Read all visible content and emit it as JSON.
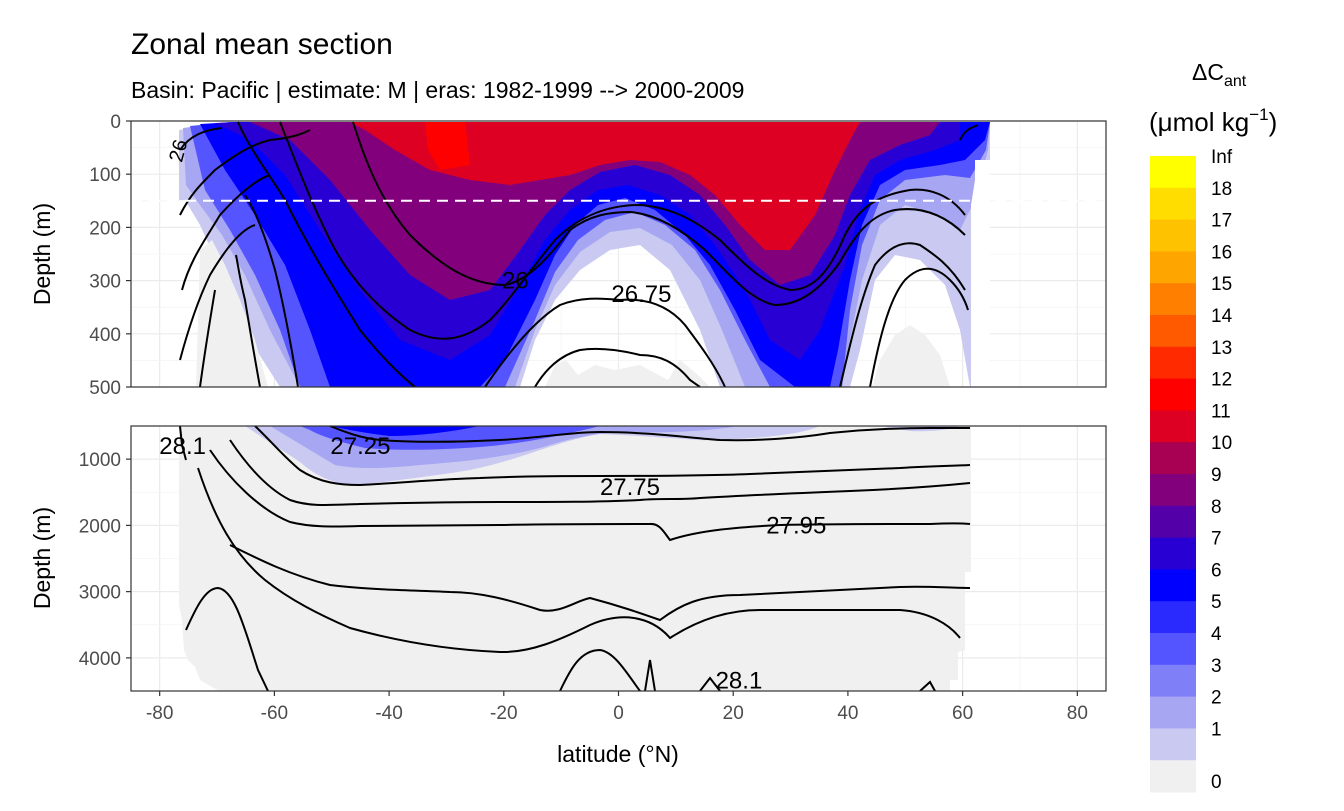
{
  "chart_data": {
    "type": "heatmap",
    "title": "Zonal mean section",
    "subtitle": "Basin: Pacific | estimate: M  | eras: 1982-1999 --> 2000-2009",
    "xlabel": "latitude (°N)",
    "ylabel_top": "Depth (m)",
    "ylabel_bottom": "Depth (m)",
    "x_ticks": [
      "-80",
      "-60",
      "-40",
      "-20",
      "0",
      "20",
      "40",
      "60",
      "80"
    ],
    "x_tick_values": [
      -80,
      -60,
      -40,
      -20,
      0,
      20,
      40,
      60,
      80
    ],
    "xlim": [
      -85,
      85
    ],
    "top_panel": {
      "ylim": [
        0,
        500
      ],
      "y_ticks": [
        "0",
        "100",
        "200",
        "300",
        "400",
        "500"
      ],
      "y_tick_values": [
        0,
        100,
        200,
        300,
        400,
        500
      ],
      "reference_line_depth": 150
    },
    "bottom_panel": {
      "ylim": [
        500,
        4500
      ],
      "y_ticks": [
        "1000",
        "2000",
        "3000",
        "4000"
      ],
      "y_tick_values": [
        1000,
        2000,
        3000,
        4000
      ]
    },
    "legend": {
      "title_main": "ΔC",
      "title_sub": "ant",
      "unit_text": "(μmol kg",
      "unit_sup": "−1",
      "unit_close": ")",
      "labels": [
        "Inf",
        "18",
        "17",
        "16",
        "15",
        "14",
        "13",
        "12",
        "11",
        "10",
        "9",
        "8",
        "7",
        "6",
        "5",
        "4",
        "3",
        "2",
        "1",
        "0"
      ],
      "colors": [
        "#ffff00",
        "#ffdd00",
        "#ffc200",
        "#ffa500",
        "#ff8000",
        "#ff5a00",
        "#ff2a00",
        "#ff0000",
        "#dd0022",
        "#a80052",
        "#83007d",
        "#5400a8",
        "#2900d4",
        "#0000ff",
        "#2a2aff",
        "#5555ff",
        "#7f7ff8",
        "#a6a6f2",
        "#c9c9f2",
        "#f0f0f0"
      ]
    },
    "contour_labels": [
      {
        "text": "26",
        "lat": -18,
        "depth": 300,
        "panel": "top"
      },
      {
        "text": "26.75",
        "lat": 4,
        "depth": 325,
        "panel": "top"
      },
      {
        "text": "26",
        "lat": -77,
        "depth": 55,
        "panel": "top"
      },
      {
        "text": "28.1",
        "lat": -76,
        "depth": 800,
        "panel": "bottom"
      },
      {
        "text": "27.25",
        "lat": -45,
        "depth": 800,
        "panel": "bottom"
      },
      {
        "text": "27.75",
        "lat": 2,
        "depth": 1420,
        "panel": "bottom"
      },
      {
        "text": "27.95",
        "lat": 31,
        "depth": 2000,
        "panel": "bottom"
      },
      {
        "text": "28.1",
        "lat": 21,
        "depth": 4340,
        "panel": "bottom"
      }
    ]
  }
}
